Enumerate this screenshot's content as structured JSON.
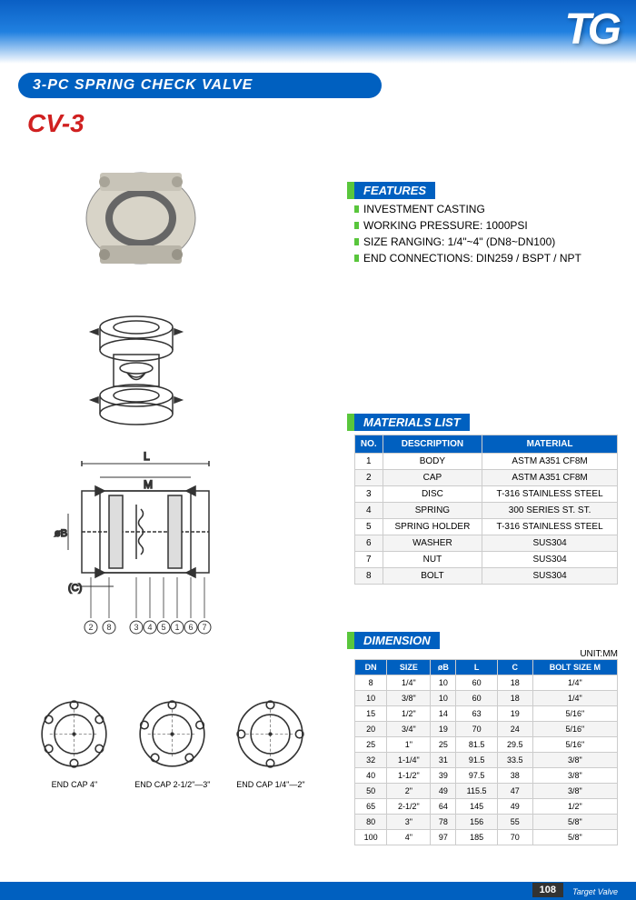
{
  "header": {
    "logo": "TG",
    "title": "3-PC SPRING CHECK VALVE",
    "model": "CV-3"
  },
  "features": {
    "heading": "FEATURES",
    "items": [
      "INVESTMENT CASTING",
      "WORKING PRESSURE: 1000PSI",
      "SIZE RANGING: 1/4\"~4\" (DN8~DN100)",
      "END CONNECTIONS: DIN259 / BSPT / NPT"
    ]
  },
  "materials": {
    "heading": "MATERIALS LIST",
    "columns": [
      "NO.",
      "DESCRIPTION",
      "MATERIAL"
    ],
    "rows": [
      [
        "1",
        "BODY",
        "ASTM A351 CF8M"
      ],
      [
        "2",
        "CAP",
        "ASTM A351 CF8M"
      ],
      [
        "3",
        "DISC",
        "T-316 STAINLESS STEEL"
      ],
      [
        "4",
        "SPRING",
        "300 SERIES ST. ST."
      ],
      [
        "5",
        "SPRING HOLDER",
        "T-316 STAINLESS STEEL"
      ],
      [
        "6",
        "WASHER",
        "SUS304"
      ],
      [
        "7",
        "NUT",
        "SUS304"
      ],
      [
        "8",
        "BOLT",
        "SUS304"
      ]
    ]
  },
  "dimension": {
    "heading": "DIMENSION",
    "unit": "UNIT:MM",
    "columns": [
      "DN",
      "SIZE",
      "øB",
      "L",
      "C",
      "BOLT SIZE M"
    ],
    "rows": [
      [
        "8",
        "1/4\"",
        "10",
        "60",
        "18",
        "1/4\""
      ],
      [
        "10",
        "3/8\"",
        "10",
        "60",
        "18",
        "1/4\""
      ],
      [
        "15",
        "1/2\"",
        "14",
        "63",
        "19",
        "5/16\""
      ],
      [
        "20",
        "3/4\"",
        "19",
        "70",
        "24",
        "5/16\""
      ],
      [
        "25",
        "1\"",
        "25",
        "81.5",
        "29.5",
        "5/16\""
      ],
      [
        "32",
        "1-1/4\"",
        "31",
        "91.5",
        "33.5",
        "3/8\""
      ],
      [
        "40",
        "1-1/2\"",
        "39",
        "97.5",
        "38",
        "3/8\""
      ],
      [
        "50",
        "2\"",
        "49",
        "115.5",
        "47",
        "3/8\""
      ],
      [
        "65",
        "2-1/2\"",
        "64",
        "145",
        "49",
        "1/2\""
      ],
      [
        "80",
        "3\"",
        "78",
        "156",
        "55",
        "5/8\""
      ],
      [
        "100",
        "4\"",
        "97",
        "185",
        "70",
        "5/8\""
      ]
    ]
  },
  "end_caps": [
    {
      "label": "END CAP 4\"",
      "bolts": 6
    },
    {
      "label": "END CAP 2-1/2\"—3\"",
      "bolts": 5
    },
    {
      "label": "END CAP 1/4\"—2\"",
      "bolts": 4
    }
  ],
  "diagram": {
    "labels": {
      "L": "L",
      "M": "M",
      "B": "øB",
      "C": "(C)"
    },
    "callouts": [
      "2",
      "8",
      "3",
      "4",
      "5",
      "1",
      "6",
      "7"
    ]
  },
  "footer": {
    "page": "108",
    "brand": "Target Valve"
  },
  "colors": {
    "primary_blue": "#0060c0",
    "accent_green": "#59c63c",
    "model_red": "#d02020"
  }
}
